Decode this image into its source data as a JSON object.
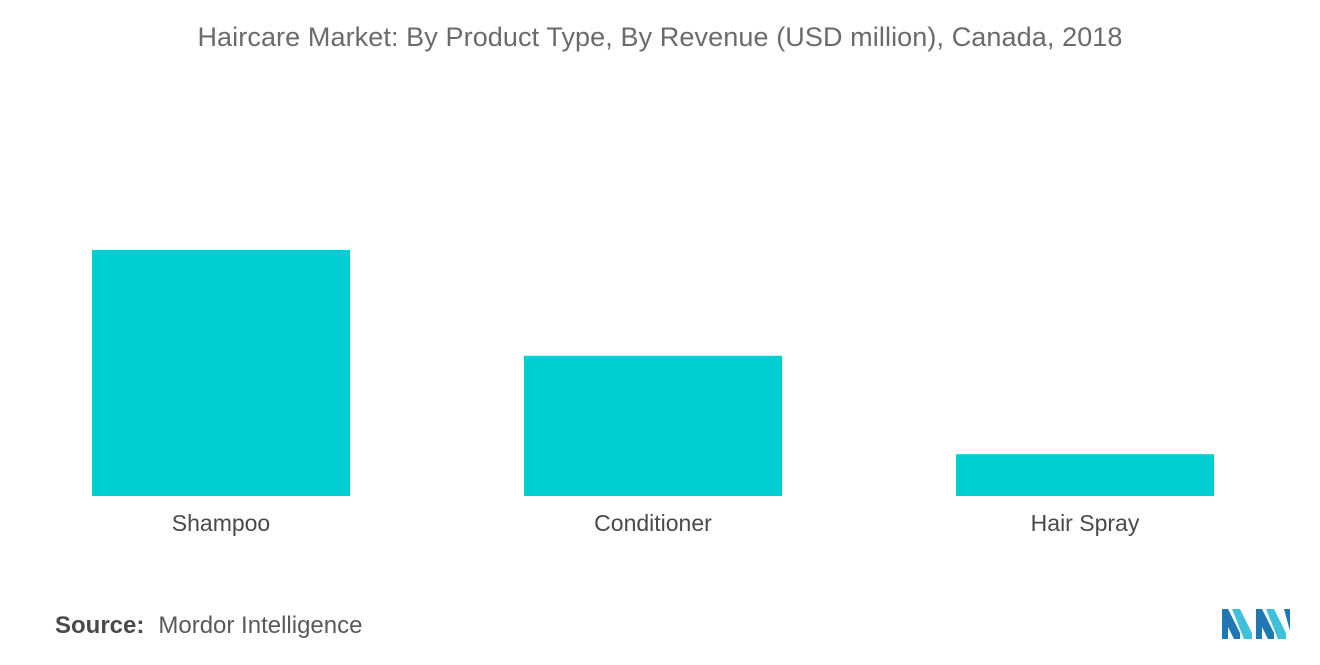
{
  "chart_data": {
    "type": "bar",
    "title": "Haircare Market: By Product Type, By Revenue (USD million), Canada, 2018",
    "categories": [
      "Shampoo",
      "Conditioner",
      "Hair Spray"
    ],
    "values": [
      100,
      57,
      17
    ],
    "xlabel": "",
    "ylabel": "",
    "ylim": [
      0,
      100
    ],
    "grid": false,
    "legend": "none",
    "bar_color": "#00CED1"
  },
  "source": {
    "label": "Source:",
    "value": "Mordor Intelligence"
  },
  "logo": {
    "icon": "mordor-intelligence-logo",
    "colors": [
      "#1f78b4",
      "#3fc1d9"
    ]
  }
}
